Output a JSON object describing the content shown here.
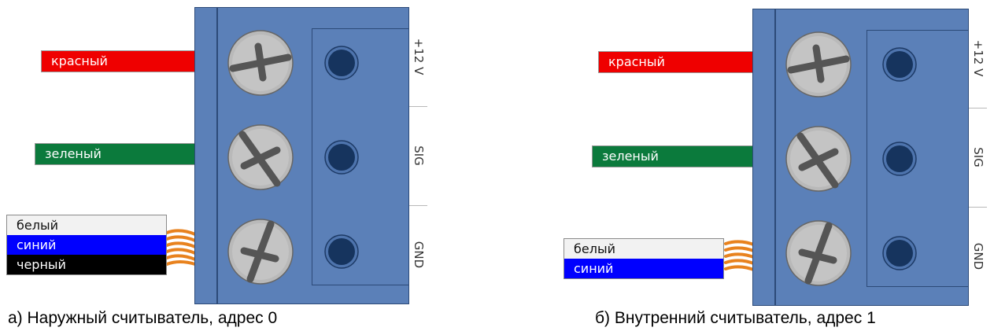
{
  "colors": {
    "red_wire": "#ef0000",
    "green_wire": "#0b7a3c",
    "white_wire": "#f2f2f2",
    "blue_wire": "#0000ff",
    "black_wire": "#000000",
    "terminal_block": "#5b80b8",
    "terminal_outline": "#2c4a78",
    "screw": "#b9b9b9",
    "hole": "#16345e",
    "twisted_wire": "#e8821e"
  },
  "terminal_labels": [
    "+12 V",
    "SIG",
    "GND"
  ],
  "diagram_a": {
    "caption": "а) Наружный считыватель, адрес 0",
    "wires": {
      "red": "красный",
      "green": "зеленый",
      "gnd_bundle": [
        "белый",
        "синий",
        "черный"
      ]
    }
  },
  "diagram_b": {
    "caption": "б) Внутренний считыватель, адрес 1",
    "wires": {
      "red": "красный",
      "green": "зеленый",
      "gnd_bundle": [
        "белый",
        "синий"
      ]
    }
  }
}
